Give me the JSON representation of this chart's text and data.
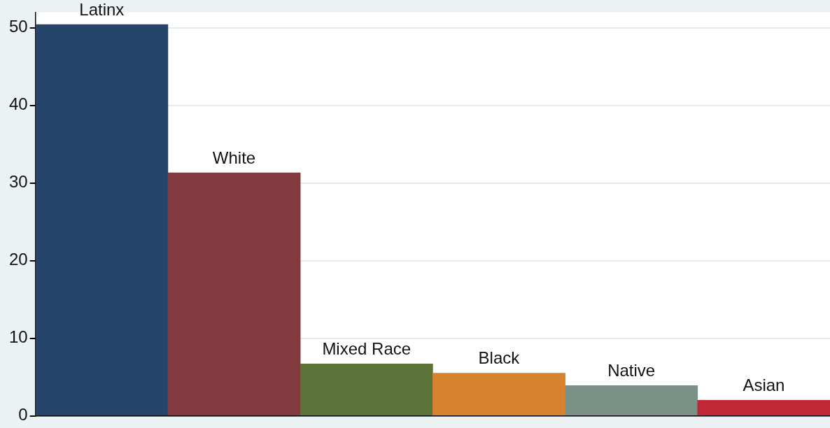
{
  "chart_data": {
    "type": "bar",
    "categories": [
      "Latinx",
      "White",
      "Mixed Race",
      "Black",
      "Native",
      "Asian"
    ],
    "values": [
      50.4,
      31.3,
      6.7,
      5.5,
      3.9,
      2.0
    ],
    "colors": [
      "#25456a",
      "#833a3e",
      "#5b7339",
      "#d6822f",
      "#7a9188",
      "#c02837"
    ],
    "ylim": [
      0,
      52
    ],
    "yticks": [
      0,
      10,
      20,
      30,
      40,
      50
    ],
    "grid": "y",
    "legend": false
  }
}
